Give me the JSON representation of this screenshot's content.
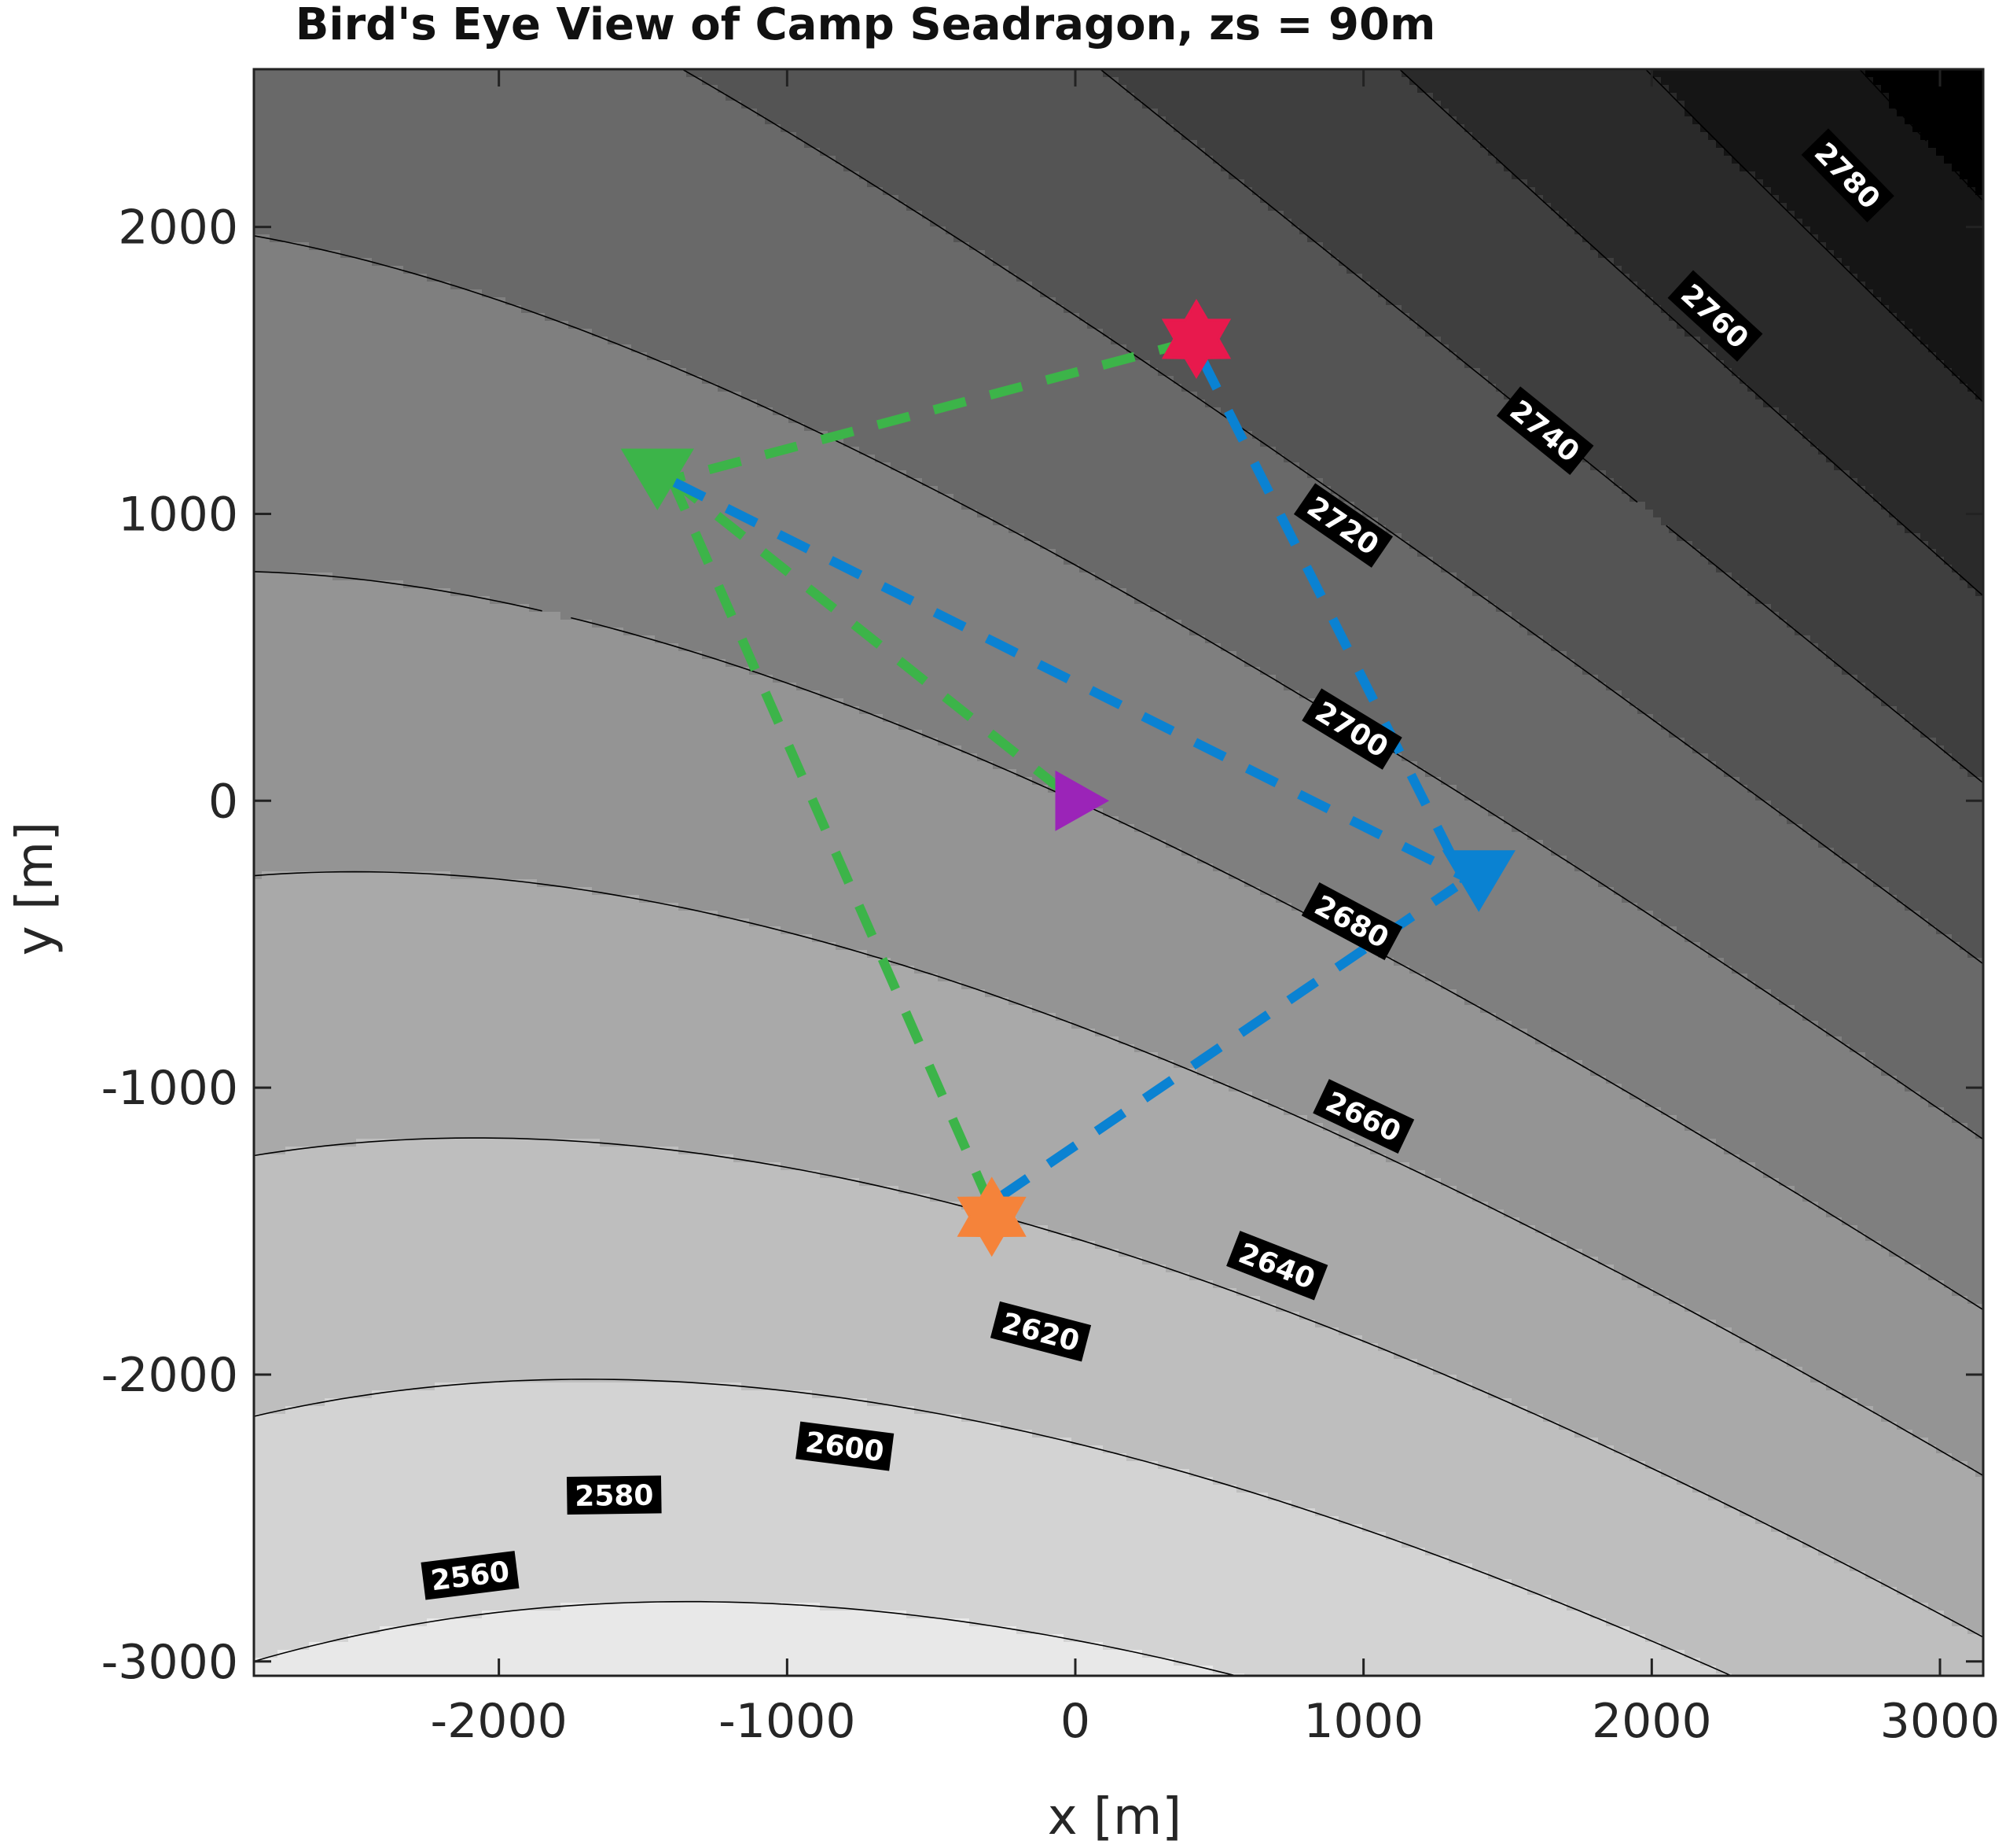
{
  "chart_data": {
    "type": "contour",
    "title": "Bird's Eye View of Camp Seadragon, zs = 90m",
    "xlabel": "x [m]",
    "ylabel": "y [m]",
    "xlim": [
      -2850,
      3150
    ],
    "ylim": [
      -3050,
      2550
    ],
    "xticks": [
      -2000,
      -1000,
      0,
      1000,
      2000,
      3000
    ],
    "yticks": [
      -3000,
      -2000,
      -1000,
      0,
      1000,
      2000
    ],
    "xtick_labels": [
      "-2000",
      "-1000",
      "0",
      "1000",
      "2000",
      "3000"
    ],
    "ytick_labels": [
      "-3000",
      "-2000",
      "-1000",
      "0",
      "1000",
      "2000"
    ],
    "grid": false,
    "contour_levels": [
      2560,
      2580,
      2600,
      2620,
      2640,
      2660,
      2680,
      2700,
      2720,
      2740,
      2760,
      2780
    ],
    "contour_labels": [
      {
        "text": "2560",
        "x": -2100,
        "y": -2700
      },
      {
        "text": "2580",
        "x": -1600,
        "y": -2420
      },
      {
        "text": "2600",
        "x": -800,
        "y": -2250
      },
      {
        "text": "2620",
        "x": -120,
        "y": -1850
      },
      {
        "text": "2640",
        "x": 700,
        "y": -1620
      },
      {
        "text": "2660",
        "x": 1000,
        "y": -1100
      },
      {
        "text": "2680",
        "x": 960,
        "y": -420
      },
      {
        "text": "2700",
        "x": 960,
        "y": 250
      },
      {
        "text": "2720",
        "x": 930,
        "y": 960
      },
      {
        "text": "2740",
        "x": 1630,
        "y": 1290
      },
      {
        "text": "2760",
        "x": 2220,
        "y": 1690
      },
      {
        "text": "2780",
        "x": 2680,
        "y": 2180
      }
    ],
    "markers": [
      {
        "name": "red-hexagram",
        "shape": "hexagram",
        "x": 420,
        "y": 1610,
        "color": "#e8194d"
      },
      {
        "name": "orange-hexagram",
        "shape": "hexagram",
        "x": -290,
        "y": -1450,
        "color": "#f5833a"
      },
      {
        "name": "green-triangle-down",
        "shape": "triangle-down",
        "x": -1450,
        "y": 1130,
        "color": "#3cb449"
      },
      {
        "name": "blue-triangle-down",
        "shape": "triangle-down",
        "x": 1400,
        "y": -270,
        "color": "#0a82d2"
      },
      {
        "name": "purple-triangle-right",
        "shape": "triangle-right",
        "x": 0,
        "y": 0,
        "color": "#9b24b8"
      }
    ],
    "series": [
      {
        "type": "dashed",
        "color": "#3cb449",
        "x": [
          400,
          -1400,
          -1400,
          0
        ],
        "y": [
          1600,
          1120,
          1120,
          0
        ],
        "segments": [
          [
            [
              400,
              1600
            ],
            [
              -1400,
              1120
            ]
          ],
          [
            [
              -1400,
              1120
            ],
            [
              0,
              0
            ]
          ],
          [
            [
              -1400,
              1120
            ],
            [
              -290,
              -1420
            ]
          ]
        ]
      },
      {
        "type": "dashed",
        "color": "#0a82d2",
        "segments": [
          [
            [
              440,
              1540
            ],
            [
              1350,
              -280
            ]
          ],
          [
            [
              -1390,
              1110
            ],
            [
              1340,
              -260
            ]
          ],
          [
            [
              -260,
              -1380
            ],
            [
              1320,
              -300
            ]
          ]
        ]
      }
    ]
  }
}
